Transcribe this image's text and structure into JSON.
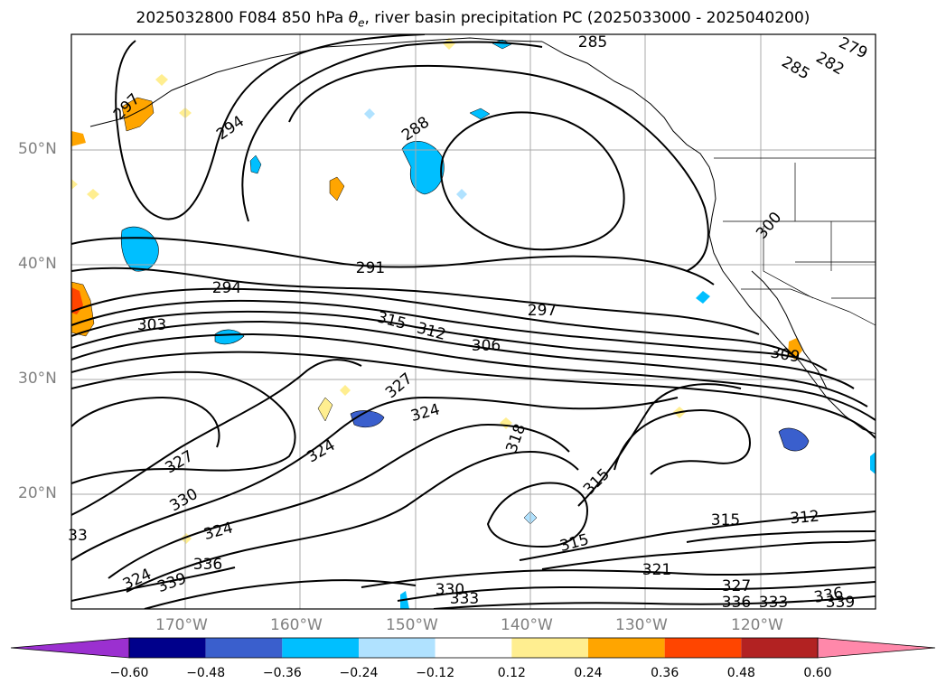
{
  "title": {
    "prefix": "2025032800 F084 850 hPa ",
    "symbol": "θ",
    "subscript": "e",
    "suffix": ", river basin precipitation PC (2025033000 - 2025040200)"
  },
  "axes": {
    "lat_labels": [
      "50°N",
      "40°N",
      "30°N",
      "20°N"
    ],
    "lon_labels": [
      "170°W",
      "160°W",
      "150°W",
      "140°W",
      "130°W",
      "120°W"
    ],
    "tick_color": "#808080"
  },
  "contour_labels": [
    {
      "id": "c285a",
      "text": "285"
    },
    {
      "id": "c279",
      "text": "279"
    },
    {
      "id": "c285b",
      "text": "285"
    },
    {
      "id": "c282",
      "text": "282"
    },
    {
      "id": "c297a",
      "text": "297"
    },
    {
      "id": "c294a",
      "text": "294"
    },
    {
      "id": "c288",
      "text": "288"
    },
    {
      "id": "c300",
      "text": "300"
    },
    {
      "id": "c291",
      "text": "291"
    },
    {
      "id": "c294b",
      "text": "294"
    },
    {
      "id": "c297b",
      "text": "297"
    },
    {
      "id": "c303",
      "text": "303"
    },
    {
      "id": "c315a",
      "text": "315"
    },
    {
      "id": "c312a",
      "text": "312"
    },
    {
      "id": "c306",
      "text": "306"
    },
    {
      "id": "c309",
      "text": "309"
    },
    {
      "id": "c327a",
      "text": "327"
    },
    {
      "id": "c324a",
      "text": "324"
    },
    {
      "id": "c318",
      "text": "318"
    },
    {
      "id": "c324b",
      "text": "324"
    },
    {
      "id": "c327b",
      "text": "327"
    },
    {
      "id": "c315b",
      "text": "315"
    },
    {
      "id": "c330a",
      "text": "330"
    },
    {
      "id": "c324c",
      "text": "324"
    },
    {
      "id": "c333a",
      "text": "33"
    },
    {
      "id": "c315c",
      "text": "315"
    },
    {
      "id": "c312b",
      "text": "312"
    },
    {
      "id": "c315d",
      "text": "315"
    },
    {
      "id": "c336a",
      "text": "336"
    },
    {
      "id": "c321",
      "text": "321"
    },
    {
      "id": "c324d",
      "text": "324"
    },
    {
      "id": "c339a",
      "text": "339"
    },
    {
      "id": "c330b",
      "text": "330"
    },
    {
      "id": "c333b",
      "text": "333"
    },
    {
      "id": "c327c",
      "text": "327"
    },
    {
      "id": "c336b",
      "text": "336"
    },
    {
      "id": "c333c",
      "text": "333"
    },
    {
      "id": "c336c",
      "text": "336"
    },
    {
      "id": "c339b",
      "text": "339"
    }
  ],
  "colorbar": {
    "labels": [
      "−0.60",
      "−0.48",
      "−0.36",
      "−0.24",
      "−0.12",
      "0.12",
      "0.24",
      "0.36",
      "0.48",
      "0.60"
    ],
    "colors": [
      "#9b30d0",
      "#00008b",
      "#3a5fcd",
      "#00bfff",
      "#b0e2ff",
      "#ffffff",
      "#ffee90",
      "#ffa500",
      "#ff4500",
      "#b22222",
      "#ff88aa"
    ],
    "levels": [
      -0.72,
      -0.6,
      -0.48,
      -0.36,
      -0.24,
      -0.12,
      0.12,
      0.24,
      0.36,
      0.48,
      0.6,
      0.72
    ]
  }
}
